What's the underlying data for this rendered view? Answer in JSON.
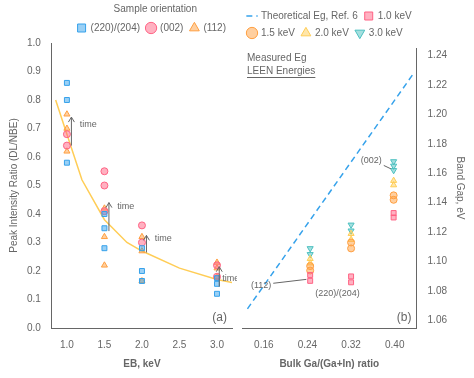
{
  "chart_data": [
    {
      "type": "scatter",
      "xlabel": "EB, keV",
      "ylabel": "Peak Intensity Ratio (DL/NBE)",
      "xlim": [
        0.8,
        3.2
      ],
      "ylim": [
        0.0,
        1.0
      ],
      "xticks": [
        {
          "value": 1.0,
          "label": "1.0"
        },
        1.5,
        {
          "value": 2.0,
          "label": "2.0"
        },
        2.5,
        {
          "value": 3.0,
          "label": "3.0"
        }
      ],
      "yticks": [
        {
          "value": 0.0,
          "label": "0.0"
        },
        0.1,
        0.2,
        0.3,
        0.4,
        0.5,
        0.6,
        0.7,
        0.8,
        0.9,
        {
          "value": 1.0,
          "label": "1.0"
        }
      ],
      "grid": false,
      "legend": "upper right",
      "legend_title": "Sample orientation",
      "panel_label": "(a)",
      "series": [
        {
          "name": "(220)/(204)",
          "marker": "square",
          "x": [
            1.0,
            1.0,
            1.0,
            1.5,
            1.5,
            1.5,
            2.0,
            2.0,
            2.0,
            3.0,
            3.0,
            3.0
          ],
          "values": [
            0.86,
            0.8,
            0.58,
            0.4,
            0.35,
            0.28,
            0.28,
            0.2,
            0.165,
            0.175,
            0.155,
            0.12
          ]
        },
        {
          "name": "(002)",
          "marker": "circle",
          "x": [
            1.0,
            1.0,
            1.5,
            1.5,
            1.5,
            2.0,
            2.0,
            3.0,
            3.0
          ],
          "values": [
            0.68,
            0.64,
            0.55,
            0.5,
            0.41,
            0.36,
            0.3,
            0.22,
            0.18
          ]
        },
        {
          "name": "(112)",
          "marker": "triangle",
          "x": [
            1.0,
            1.0,
            1.0,
            1.5,
            1.5,
            1.5,
            2.0,
            2.0,
            2.0,
            3.0,
            3.0,
            3.0
          ],
          "values": [
            0.75,
            0.7,
            0.62,
            0.42,
            0.32,
            0.22,
            0.32,
            0.27,
            0.165,
            0.23,
            0.21,
            0.18
          ]
        },
        {
          "type": "line",
          "line_style": "solid",
          "x": [
            0.85,
            1.0,
            1.2,
            1.5,
            1.8,
            2.0,
            2.5,
            3.0,
            3.2
          ],
          "values": [
            0.8,
            0.68,
            0.52,
            0.38,
            0.3,
            0.27,
            0.21,
            0.17,
            0.16
          ]
        }
      ],
      "annotations": [
        {
          "text": "time",
          "x": 1.13,
          "y": 0.715,
          "arrow": {
            "x": 1.06,
            "from": 0.64,
            "to": 0.74
          }
        },
        {
          "text": "time",
          "x": 1.63,
          "y": 0.425,
          "arrow": {
            "x": 1.56,
            "from": 0.34,
            "to": 0.44
          }
        },
        {
          "text": "time",
          "x": 2.13,
          "y": 0.315,
          "arrow": {
            "x": 2.06,
            "from": 0.265,
            "to": 0.325
          }
        },
        {
          "text": "time",
          "x": 3.03,
          "y": 0.175,
          "arrow": {
            "x": 3.03,
            "from": 0.145,
            "to": 0.215
          }
        }
      ]
    },
    {
      "type": "scatter",
      "xlabel": "Bulk Ga/(Ga+In) ratio",
      "ylabel": "Band Gap, eV",
      "xlim": [
        0.12,
        0.44
      ],
      "ylim": [
        1.055,
        1.245
      ],
      "xticks": [
        0.16,
        0.24,
        0.32,
        {
          "value": 0.4,
          "label": "0.40"
        }
      ],
      "yticks": [
        1.06,
        1.08,
        {
          "value": 1.1,
          "label": "1.10"
        },
        1.12,
        1.14,
        1.16,
        1.18,
        {
          "value": 1.2,
          "label": "1.20"
        },
        1.22,
        1.24
      ],
      "grid": false,
      "legend": "upper left",
      "legend_subtitle": [
        "Measured Eg",
        "LEEN Energies"
      ],
      "panel_label": "(b)",
      "series": [
        {
          "name": "Theoretical Eg, Ref. 6",
          "type": "line",
          "line_style": "dashed",
          "x": [
            0.13,
            0.435
          ],
          "values": [
            1.068,
            1.228
          ]
        },
        {
          "name": "1.0 keV",
          "marker": "square",
          "x": [
            0.245,
            0.245,
            0.32,
            0.32,
            0.398,
            0.398
          ],
          "values": [
            1.087,
            1.091,
            1.086,
            1.09,
            1.13,
            1.133
          ]
        },
        {
          "name": "1.5 keV",
          "marker": "circle",
          "x": [
            0.245,
            0.245,
            0.32,
            0.32,
            0.398,
            0.398
          ],
          "values": [
            1.094,
            1.097,
            1.109,
            1.113,
            1.142,
            1.145
          ]
        },
        {
          "name": "2.0 keV",
          "marker": "triangle",
          "x": [
            0.245,
            0.245,
            0.32,
            0.32,
            0.398,
            0.398
          ],
          "values": [
            1.099,
            1.102,
            1.115,
            1.119,
            1.152,
            1.155
          ]
        },
        {
          "name": "3.0 keV",
          "marker": "triangle_down",
          "x": [
            0.245,
            0.245,
            0.32,
            0.32,
            0.398,
            0.398,
            0.398
          ],
          "values": [
            1.105,
            1.109,
            1.121,
            1.125,
            1.162,
            1.165,
            1.168
          ]
        }
      ],
      "annotations": [
        {
          "text": "(002)",
          "x": 0.357,
          "y": 1.167,
          "point": {
            "x": 0.393,
            "y": 1.163
          }
        },
        {
          "text": "(112)",
          "x": 0.155,
          "y": 1.082,
          "point": {
            "x": 0.238,
            "y": 1.088
          }
        },
        {
          "text": "(220)/(204)",
          "x": 0.295,
          "y": 1.077,
          "point": {
            "x": 0.315,
            "y": 1.082
          }
        }
      ]
    }
  ]
}
